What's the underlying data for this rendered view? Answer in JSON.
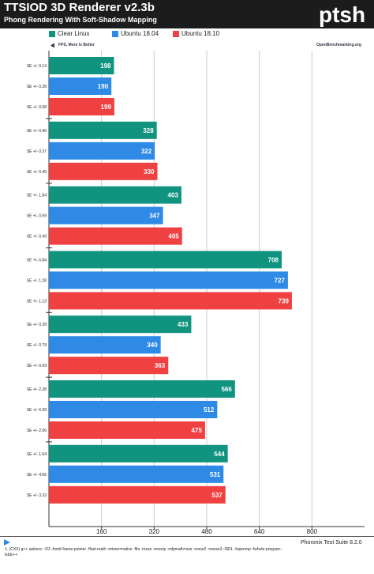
{
  "header": {
    "title": "TTSIOD 3D Renderer v2.3b",
    "subtitle": "Phong Rendering With Soft-Shadow Mapping",
    "logo_text": "ptsh"
  },
  "metric_note": "FPS, More Is Better",
  "website": "OpenBenchmarking.org",
  "colors": {
    "clear_linux": "#10947f",
    "ubuntu_1804": "#2f8ae6",
    "ubuntu_1810": "#ef4141",
    "header_bg": "#1c1c1c"
  },
  "chart_data": {
    "type": "bar",
    "orientation": "horizontal",
    "xlim": [
      0,
      960
    ],
    "x_ticks": [
      "160",
      "320",
      "480",
      "640",
      "800"
    ],
    "x_tick_values": [
      160,
      320,
      480,
      640,
      800
    ],
    "grid": true,
    "legend_placement": "top",
    "series": [
      {
        "name": "Clear Linux",
        "color": "#10947f"
      },
      {
        "name": "Ubuntu 18.04",
        "color": "#2f8ae6"
      },
      {
        "name": "Ubuntu 18.10",
        "color": "#ef4141"
      }
    ],
    "groups": [
      {
        "values": [
          198,
          190,
          199
        ],
        "se": [
          "SE +/- 0.14",
          "SE +/- 0.28",
          "SE +/- 0.08"
        ]
      },
      {
        "values": [
          328,
          322,
          330
        ],
        "se": [
          "SE +/- 0.46",
          "SE +/- 0.37",
          "SE +/- 0.49"
        ]
      },
      {
        "values": [
          403,
          347,
          405
        ],
        "se": [
          "SE +/- 1.84",
          "SE +/- 0.59",
          "SE +/- 0.49"
        ]
      },
      {
        "values": [
          708,
          727,
          739
        ],
        "se": [
          "SE +/- 6.84",
          "SE +/- 1.28",
          "SE +/- 1.13"
        ]
      },
      {
        "values": [
          433,
          340,
          363
        ],
        "se": [
          "SE +/- 0.39",
          "SE +/- 0.79",
          "SE +/- 0.09"
        ]
      },
      {
        "values": [
          566,
          512,
          475
        ],
        "se": [
          "SE +/- 2.28",
          "SE +/- 6.99",
          "SE +/- 2.06"
        ]
      },
      {
        "values": [
          544,
          531,
          537
        ],
        "se": [
          "SE +/- 1.54",
          "SE +/- 4.66",
          "SE +/- 3.32"
        ]
      }
    ]
  },
  "footer": {
    "note": "1. (CXX) g++ options: -O3 -fomit-frame-pointer -ffast-math -mtune=native -flto -msse -mrecip -mfpmath=sse -msse2 -mssse3 -lSDL -fopenmp -fwhole-program -lstdc++",
    "suite": "Phoronix Test Suite 8.2.0"
  }
}
